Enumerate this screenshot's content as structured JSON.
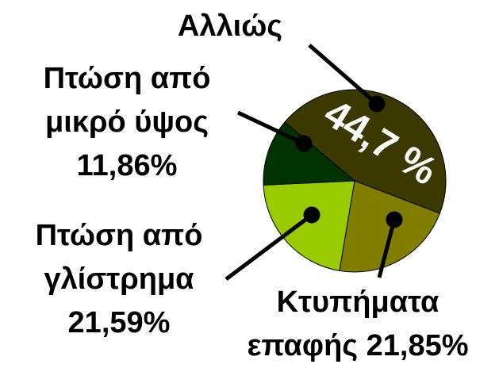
{
  "chart_data": {
    "type": "pie",
    "categories": [
      "Αλλιώς",
      "Κτυπήματα επαφής",
      "Πτώση από γλίστρημα",
      "Πτώση από μικρό ύψος"
    ],
    "values": [
      44.7,
      21.85,
      21.59,
      11.86
    ],
    "value_labels": [
      "44,7 %",
      "21,85%",
      "21,59%",
      "11,86%"
    ],
    "colors": [
      "#3b3800",
      "#807d00",
      "#99cc00",
      "#003300"
    ]
  }
}
